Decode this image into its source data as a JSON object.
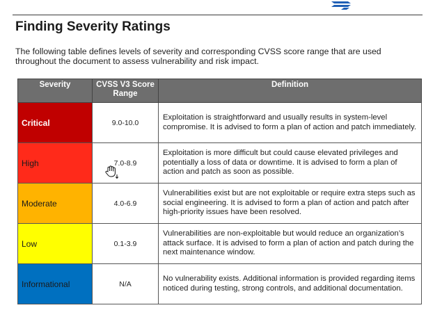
{
  "header": {
    "title": "Finding Severity Ratings",
    "intro": "The following table defines levels of severity and corresponding CVSS score range that are used throughout the document to assess vulnerability and risk impact."
  },
  "table": {
    "headers": {
      "severity": "Severity",
      "score": "CVSS V3 Score Range",
      "definition": "Definition"
    },
    "rows": [
      {
        "severity": "Critical",
        "score": "9.0-10.0",
        "definition": "Exploitation is straightforward and usually results in system-level compromise. It is advised to form a plan of action and patch immediately.",
        "color": "#c00000"
      },
      {
        "severity": "High",
        "score": "7.0-8.9",
        "definition": "Exploitation is more difficult but could cause elevated privileges and potentially a loss of data or downtime. It is advised to form a plan of action and patch as soon as possible.",
        "color": "#ff2a1a"
      },
      {
        "severity": "Moderate",
        "score": "4.0-6.9",
        "definition": "Vulnerabilities exist but are not exploitable or require extra steps such as social engineering. It is advised to form a plan of action and patch after high-priority issues have been resolved.",
        "color": "#ffb300"
      },
      {
        "severity": "Low",
        "score": "0.1-3.9",
        "definition": "Vulnerabilities are non-exploitable but would reduce an organization’s attack surface. It is advised to form a plan of action and patch during the next maintenance window.",
        "color": "#ffff00"
      },
      {
        "severity": "Informational",
        "score": "N/A",
        "definition": "No vulnerability exists. Additional information is provided regarding items noticed during testing, strong controls, and additional documentation.",
        "color": "#0070c0"
      }
    ]
  },
  "colors": {
    "header_bg": "#6e6e6e",
    "logo": "#1f5fb5"
  },
  "icons": {
    "logo": "logo-icon",
    "cursor": "hand-cursor-icon"
  }
}
